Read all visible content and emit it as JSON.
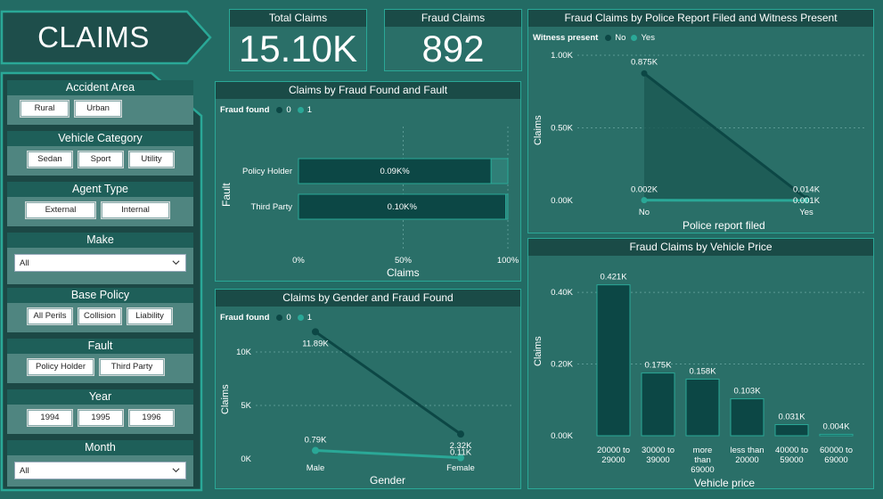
{
  "page": {
    "title": "CLAIMS"
  },
  "colors": {
    "background": "#236b64",
    "dark": "#0c4745",
    "accent": "#2aa897",
    "header": "#1a4b47"
  },
  "filters": [
    {
      "title": "Accident Area",
      "type": "chips",
      "options": [
        "Rural",
        "Urban"
      ]
    },
    {
      "title": "Vehicle Category",
      "type": "chips",
      "options": [
        "Sedan",
        "Sport",
        "Utility"
      ]
    },
    {
      "title": "Agent Type",
      "type": "chips",
      "options": [
        "External",
        "Internal"
      ]
    },
    {
      "title": "Make",
      "type": "dropdown",
      "value": "All"
    },
    {
      "title": "Base Policy",
      "type": "chips",
      "options": [
        "All Perils",
        "Collision",
        "Liability"
      ]
    },
    {
      "title": "Fault",
      "type": "chips",
      "options": [
        "Policy Holder",
        "Third Party"
      ]
    },
    {
      "title": "Year",
      "type": "chips",
      "options": [
        "1994",
        "1995",
        "1996"
      ]
    },
    {
      "title": "Month",
      "type": "dropdown",
      "value": "All"
    }
  ],
  "kpis": {
    "total_claims": {
      "label": "Total Claims",
      "value": "15.10K"
    },
    "fraud_claims": {
      "label": "Fraud Claims",
      "value": "892"
    }
  },
  "charts": {
    "fault": {
      "title": "Claims by Fraud Found and Fault",
      "legend_title": "Fraud found",
      "legend": [
        "0",
        "1"
      ],
      "ylabel": "Fault",
      "xlabel": "Claims",
      "ticks": [
        "0%",
        "50%",
        "100%"
      ],
      "bar_labels": [
        "0.09K%",
        "0.10K%"
      ]
    },
    "gender": {
      "title": "Claims by Gender and Fraud Found",
      "legend_title": "Fraud found",
      "legend": [
        "0",
        "1"
      ],
      "ylabel": "Claims",
      "xlabel": "Gender",
      "ticks": [
        "0K",
        "5K",
        "10K"
      ],
      "point_labels": [
        "11.89K",
        "2.32K",
        "0.79K",
        "0.11K"
      ]
    },
    "police": {
      "title": "Fraud Claims by Police Report Filed and Witness Present",
      "legend_title": "Witness present",
      "legend": [
        "No",
        "Yes"
      ],
      "ylabel": "Claims",
      "xlabel": "Police report filed",
      "ticks": [
        "0.00K",
        "0.50K",
        "1.00K"
      ],
      "point_labels": [
        "0.875K",
        "0.014K",
        "0.002K",
        "0.001K"
      ]
    },
    "price": {
      "title": "Fraud Claims by Vehicle Price",
      "ylabel": "Claims",
      "xlabel": "Vehicle price",
      "ticks": [
        "0.00K",
        "0.20K",
        "0.40K"
      ],
      "bar_labels": [
        "0.421K",
        "0.175K",
        "0.158K",
        "0.103K",
        "0.031K",
        "0.004K"
      ]
    }
  },
  "chart_data": [
    {
      "type": "bar",
      "title": "Claims by Fraud Found and Fault",
      "orientation": "horizontal-stacked-100",
      "categories": [
        "Policy Holder",
        "Third Party"
      ],
      "series": [
        {
          "name": "0",
          "values": [
            92.0,
            99.0
          ]
        },
        {
          "name": "1",
          "values": [
            8.0,
            1.0
          ]
        }
      ],
      "xlabel": "Claims",
      "ylabel": "Fault",
      "xlim": [
        0,
        100
      ]
    },
    {
      "type": "line",
      "title": "Claims by Gender and Fraud Found",
      "categories": [
        "Male",
        "Female"
      ],
      "series": [
        {
          "name": "0",
          "values": [
            11.89,
            2.32
          ]
        },
        {
          "name": "1",
          "values": [
            0.79,
            0.11
          ]
        }
      ],
      "xlabel": "Gender",
      "ylabel": "Claims",
      "ylim": [
        0,
        12.5
      ]
    },
    {
      "type": "area",
      "title": "Fraud Claims by Police Report Filed and Witness Present",
      "categories": [
        "No",
        "Yes"
      ],
      "series": [
        {
          "name": "No",
          "values": [
            0.875,
            0.014
          ]
        },
        {
          "name": "Yes",
          "values": [
            0.002,
            0.001
          ]
        }
      ],
      "xlabel": "Police report filed",
      "ylabel": "Claims",
      "ylim": [
        0,
        1.0
      ]
    },
    {
      "type": "bar",
      "title": "Fraud Claims by Vehicle Price",
      "categories": [
        "20000 to 29000",
        "30000 to 39000",
        "more than 69000",
        "less than 20000",
        "40000 to 59000",
        "60000 to 69000"
      ],
      "values": [
        0.421,
        0.175,
        0.158,
        0.103,
        0.031,
        0.004
      ],
      "xlabel": "Vehicle price",
      "ylabel": "Claims",
      "ylim": [
        0,
        0.45
      ]
    }
  ]
}
